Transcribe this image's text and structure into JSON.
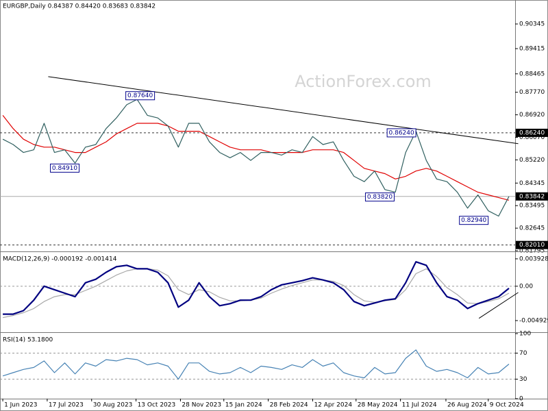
{
  "watermark": "ActionForex.com",
  "chart_data": [
    {
      "type": "line",
      "title": "EURGBP,Daily  0.84387 0.84420 0.83683 0.83842",
      "x": [
        0,
        1,
        2,
        3,
        4,
        5,
        6,
        7,
        8,
        9,
        10,
        11,
        12,
        13,
        14,
        15,
        16,
        17,
        18,
        19,
        20,
        21,
        22,
        23,
        24,
        25,
        26,
        27,
        28,
        29,
        30,
        31,
        32,
        33,
        34,
        35,
        36,
        37,
        38,
        39,
        40,
        41,
        42,
        43,
        44,
        45,
        46,
        47,
        48,
        49
      ],
      "xlim": [
        -0.27,
        49.6
      ],
      "ylim": [
        0.81795,
        0.91249
      ],
      "yticks": [
        0.90345,
        0.89415,
        0.88465,
        {
          "value": 0.8777,
          "label": "0.87770"
        },
        {
          "value": 0.8692,
          "label": "0.86920"
        },
        {
          "value": 0.8607,
          "label": "0.86070"
        },
        {
          "value": 0.8522,
          "label": "0.85220"
        },
        0.84345,
        0.83495,
        0.82645,
        0.81795
      ],
      "series": [
        {
          "color": "#2f5f5f",
          "values": [
            0.86,
            0.858,
            0.855,
            0.856,
            0.866,
            0.855,
            0.856,
            0.851,
            0.857,
            0.858,
            0.864,
            0.868,
            0.873,
            0.875,
            0.869,
            0.868,
            0.865,
            0.857,
            0.866,
            0.866,
            0.859,
            0.855,
            0.853,
            0.855,
            0.852,
            0.855,
            0.855,
            0.854,
            0.856,
            0.855,
            0.861,
            0.858,
            0.859,
            0.852,
            0.846,
            0.844,
            0.848,
            0.841,
            0.84,
            0.855,
            0.863,
            0.852,
            0.845,
            0.844,
            0.84,
            0.834,
            0.839,
            0.833,
            0.831,
            0.8384
          ]
        },
        {
          "color": "#e00000",
          "values": [
            0.869,
            0.864,
            0.86,
            0.858,
            0.857,
            0.857,
            0.856,
            0.855,
            0.855,
            0.857,
            0.859,
            0.862,
            0.864,
            0.866,
            0.866,
            0.866,
            0.865,
            0.863,
            0.863,
            0.863,
            0.861,
            0.859,
            0.857,
            0.856,
            0.856,
            0.856,
            0.855,
            0.855,
            0.855,
            0.855,
            0.856,
            0.856,
            0.856,
            0.855,
            0.852,
            0.849,
            0.848,
            0.847,
            0.845,
            0.846,
            0.848,
            0.849,
            0.848,
            0.846,
            0.844,
            0.842,
            0.84,
            0.839,
            0.838,
            0.837
          ]
        }
      ],
      "hlines": [
        {
          "value": 0.8624,
          "label": "0.86240",
          "style": "dashed"
        },
        {
          "value": 0.83842,
          "label": "0.83842",
          "style": "solid"
        },
        {
          "value": 0.8201,
          "label": "0.82010",
          "style": "dashed"
        }
      ],
      "annotations": [
        {
          "label": "0.87640",
          "value": 0.8764,
          "x": 13.3
        },
        {
          "label": "0.84910",
          "value": 0.8491,
          "x": 6.0
        },
        {
          "label": "0.83820",
          "value": 0.8382,
          "x": 36.5
        },
        {
          "label": "0.86240",
          "value": 0.8624,
          "x": 38.6
        },
        {
          "label": "0.82940",
          "value": 0.8294,
          "x": 45.6
        }
      ],
      "trendlines": [
        {
          "x": [
            4.4,
            49.9
          ],
          "y": [
            0.8836,
            0.8583
          ]
        }
      ]
    },
    {
      "type": "line",
      "title": "MACD(12,26,9) -0.000192 -0.001414",
      "x": [
        0,
        1,
        2,
        3,
        4,
        5,
        6,
        7,
        8,
        9,
        10,
        11,
        12,
        13,
        14,
        15,
        16,
        17,
        18,
        19,
        20,
        21,
        22,
        23,
        24,
        25,
        26,
        27,
        28,
        29,
        30,
        31,
        32,
        33,
        34,
        35,
        36,
        37,
        38,
        39,
        40,
        41,
        42,
        43,
        44,
        45,
        46,
        47,
        48,
        49
      ],
      "xlim": [
        -0.27,
        49.6
      ],
      "ylim": [
        -0.0065,
        0.0048
      ],
      "yticks": [
        0.003928,
        {
          "value": 0,
          "label": "0.00"
        },
        -0.004929
      ],
      "zero_line": "dashed",
      "series": [
        {
          "color": "#000080",
          "values": [
            -0.004,
            -0.004,
            -0.0035,
            -0.002,
            0.0,
            -0.0005,
            -0.001,
            -0.0015,
            0.0005,
            0.001,
            0.002,
            0.0028,
            0.003,
            0.0025,
            0.0025,
            0.002,
            0.0005,
            -0.003,
            -0.002,
            0.0005,
            -0.0015,
            -0.0028,
            -0.0025,
            -0.002,
            -0.002,
            -0.0015,
            -0.0005,
            0.0002,
            0.0005,
            0.0008,
            0.0012,
            0.0009,
            0.0005,
            -0.0005,
            -0.0022,
            -0.0028,
            -0.0024,
            -0.002,
            -0.0018,
            0.0005,
            0.0035,
            0.003,
            0.0005,
            -0.0015,
            -0.002,
            -0.0032,
            -0.0025,
            -0.002,
            -0.0015,
            -0.0003
          ]
        },
        {
          "color": "#a8a8a8",
          "values": [
            -0.0045,
            -0.0042,
            -0.0038,
            -0.0032,
            -0.0022,
            -0.0015,
            -0.0012,
            -0.0012,
            -0.0006,
            0.0,
            0.0008,
            0.0016,
            0.0022,
            0.0025,
            0.0025,
            0.0023,
            0.0015,
            -0.0005,
            -0.0012,
            -0.0005,
            -0.0008,
            -0.0016,
            -0.0021,
            -0.0021,
            -0.002,
            -0.0017,
            -0.001,
            -0.0004,
            0.0001,
            0.0005,
            0.0009,
            0.0009,
            0.0007,
            0.0001,
            -0.0012,
            -0.0021,
            -0.0023,
            -0.0021,
            -0.0019,
            -0.0005,
            0.0018,
            0.0025,
            0.0014,
            -0.0002,
            -0.0012,
            -0.0024,
            -0.0025,
            -0.0022,
            -0.0018,
            -0.001
          ]
        }
      ],
      "trendlines": [
        {
          "x": [
            46.1,
            49.9
          ],
          "y": [
            -0.0046,
            -0.0009
          ]
        }
      ]
    },
    {
      "type": "line",
      "title": "RSI(14) 53.1800",
      "x": [
        0,
        1,
        2,
        3,
        4,
        5,
        6,
        7,
        8,
        9,
        10,
        11,
        12,
        13,
        14,
        15,
        16,
        17,
        18,
        19,
        20,
        21,
        22,
        23,
        24,
        25,
        26,
        27,
        28,
        29,
        30,
        31,
        32,
        33,
        34,
        35,
        36,
        37,
        38,
        39,
        40,
        41,
        42,
        43,
        44,
        45,
        46,
        47,
        48,
        49
      ],
      "xlim": [
        -0.27,
        49.6
      ],
      "ylim": [
        0,
        100
      ],
      "yticks": [
        100,
        70,
        30,
        0
      ],
      "levels": [
        70,
        30
      ],
      "series": [
        {
          "color": "#4682b4",
          "values": [
            35,
            40,
            45,
            48,
            58,
            40,
            55,
            38,
            55,
            50,
            60,
            58,
            62,
            60,
            52,
            55,
            50,
            30,
            55,
            55,
            42,
            38,
            40,
            48,
            40,
            50,
            48,
            45,
            52,
            48,
            60,
            50,
            55,
            40,
            35,
            32,
            48,
            38,
            40,
            62,
            75,
            50,
            42,
            45,
            40,
            32,
            48,
            38,
            40,
            53.18
          ]
        }
      ],
      "xticks": [
        {
          "value": 0,
          "label": "1 Jun 2023"
        },
        {
          "value": 4.3,
          "label": "17 Jul 2023"
        },
        {
          "value": 8.6,
          "label": "30 Aug 2023"
        },
        {
          "value": 12.9,
          "label": "13 Oct 2023"
        },
        {
          "value": 17.2,
          "label": "28 Nov 2023"
        },
        {
          "value": 21.4,
          "label": "15 Jan 2024"
        },
        {
          "value": 25.7,
          "label": "28 Feb 2024"
        },
        {
          "value": 30,
          "label": "12 Apr 2024"
        },
        {
          "value": 34.2,
          "label": "28 May 2024"
        },
        {
          "value": 38.5,
          "label": "11 Jul 2024"
        },
        {
          "value": 42.9,
          "label": "26 Aug 2024"
        },
        {
          "value": 47,
          "label": "9 Oct 2024"
        }
      ]
    }
  ]
}
